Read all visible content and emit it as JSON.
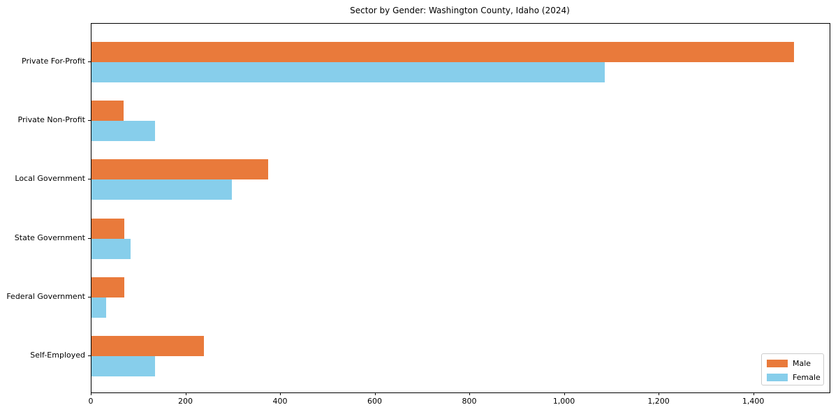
{
  "figure": {
    "title": "Sector by Gender: Washington County, Idaho (2024)"
  },
  "chart_data": {
    "type": "bar",
    "orientation": "horizontal",
    "title": "Sector by Gender: Washington County, Idaho (2024)",
    "categories": [
      "Private For-Profit",
      "Private Non-Profit",
      "Local Government",
      "State Government",
      "Federal Government",
      "Self-Employed"
    ],
    "series": [
      {
        "name": "Male",
        "color": "#e97a3b",
        "values": [
          1485,
          68,
          374,
          70,
          70,
          237
        ]
      },
      {
        "name": "Female",
        "color": "#87ceeb",
        "values": [
          1085,
          135,
          296,
          82,
          31,
          135
        ]
      }
    ],
    "xlabel": "",
    "ylabel": "",
    "xlim": [
      0,
      1560
    ],
    "x_ticks": [
      0,
      200,
      400,
      600,
      800,
      1000,
      1200,
      1400
    ],
    "x_tick_labels": [
      "0",
      "200",
      "400",
      "600",
      "800",
      "1,000",
      "1,200",
      "1,400"
    ],
    "grid": false,
    "legend_position": "lower right",
    "axis_color": "#000000",
    "text_color": "#000000"
  }
}
